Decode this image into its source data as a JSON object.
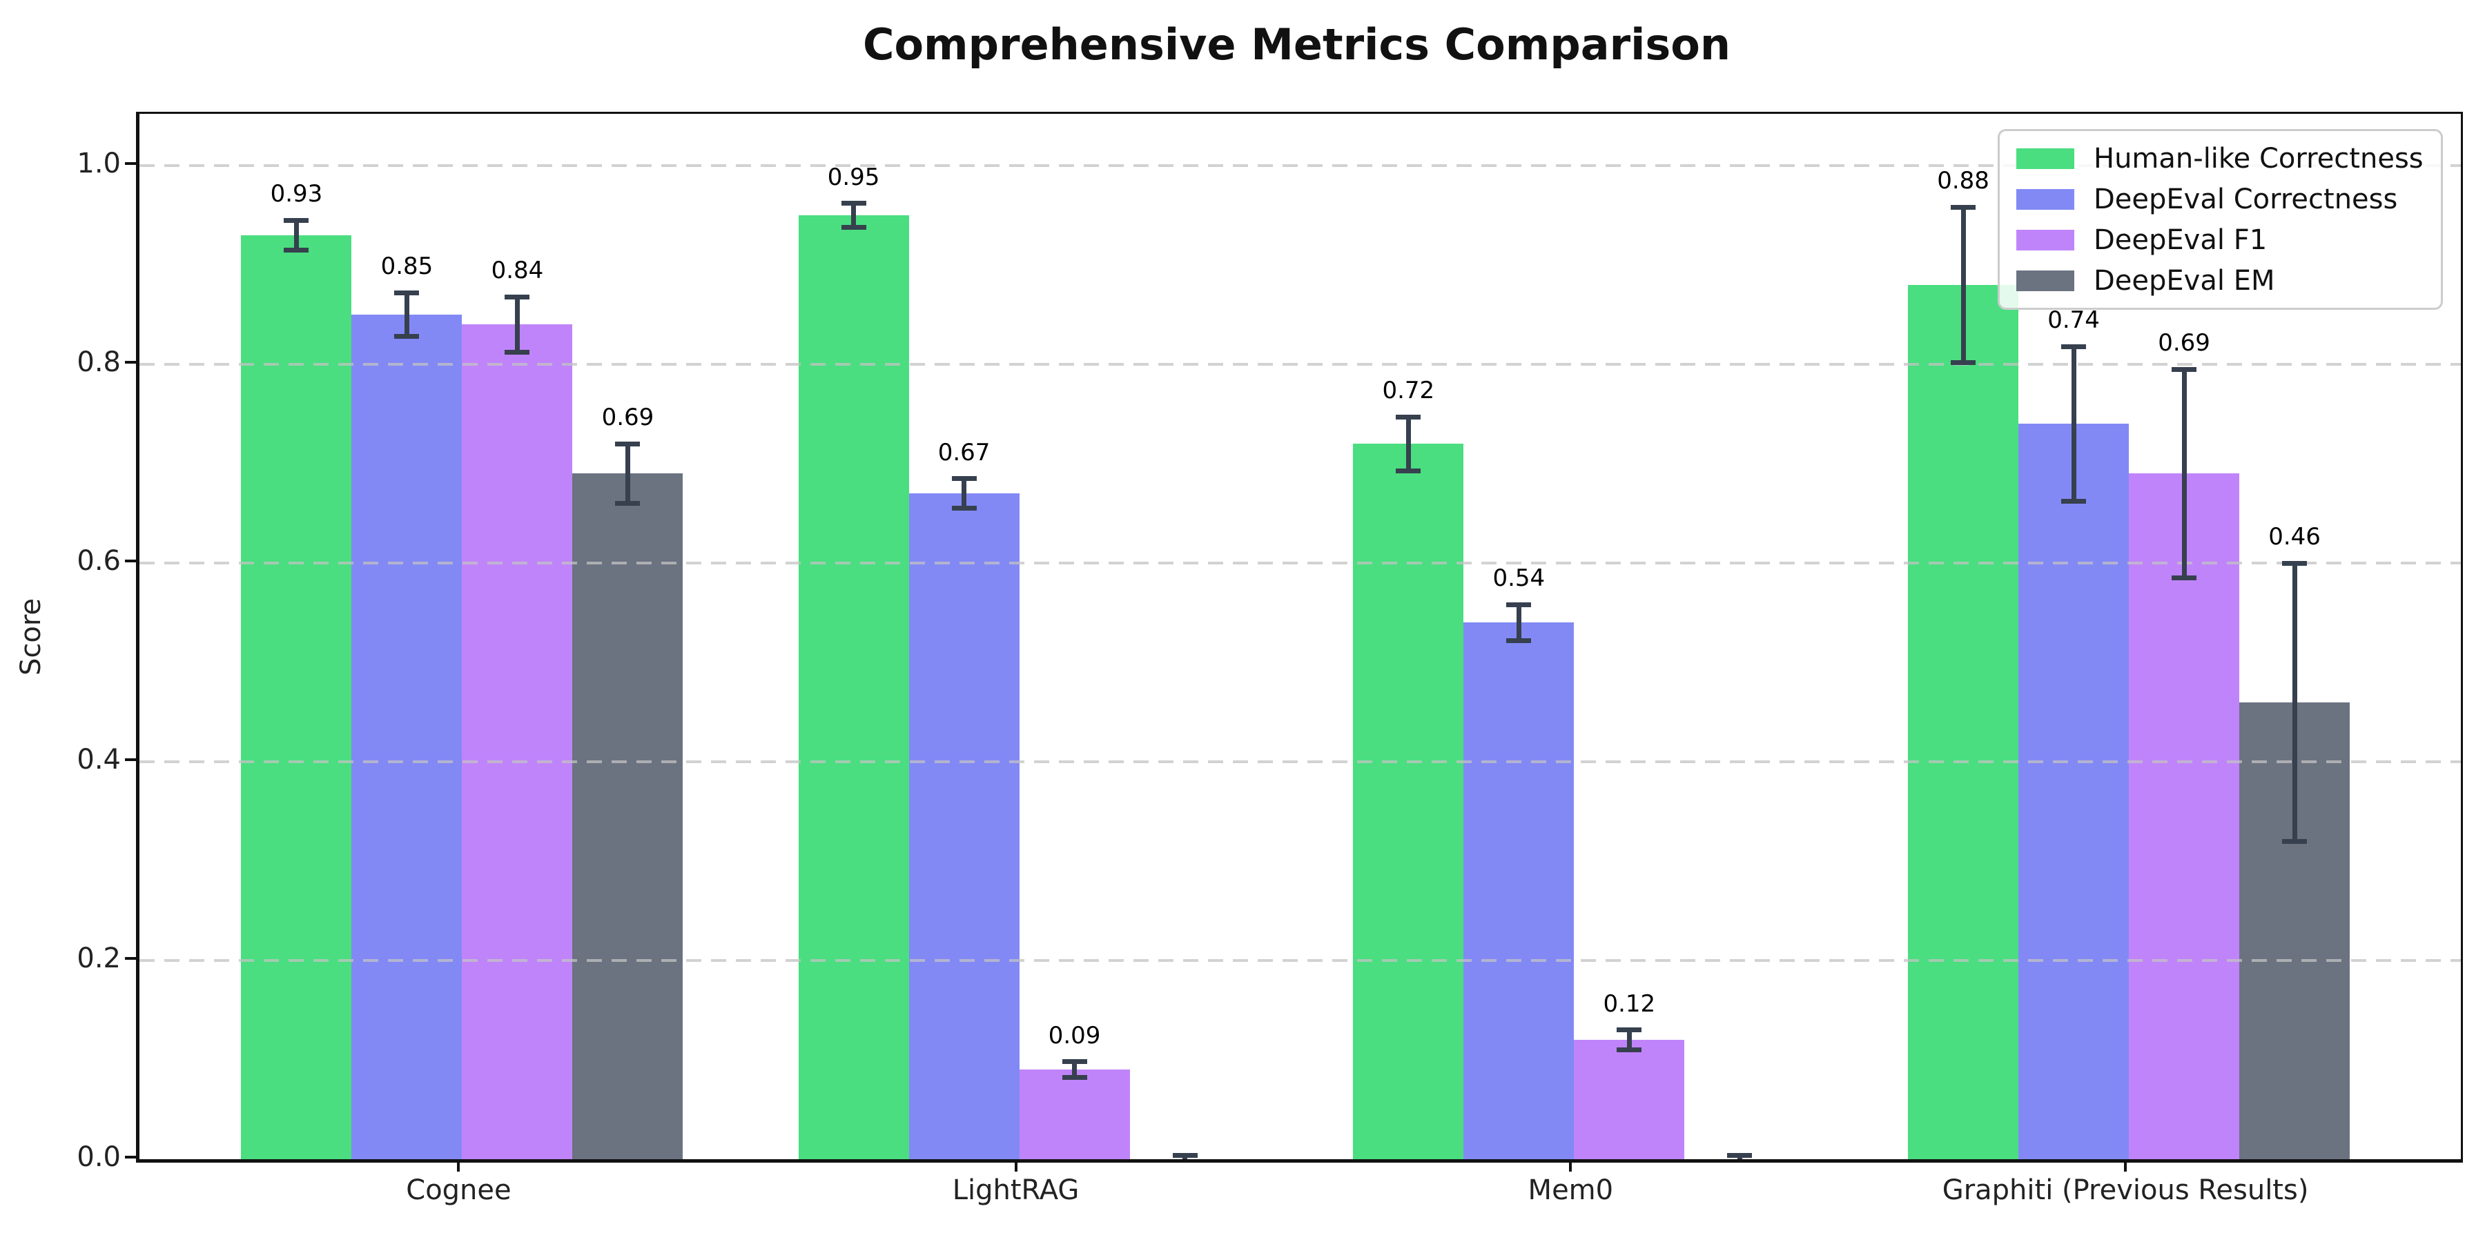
{
  "chart_data": {
    "type": "bar",
    "title": "Comprehensive Metrics Comparison",
    "xlabel": "",
    "ylabel": "Score",
    "ylim": [
      0,
      1.05
    ],
    "yticks": [
      0.0,
      0.2,
      0.4,
      0.6,
      0.8,
      1.0
    ],
    "ytick_labels": [
      "0.0",
      "0.2",
      "0.4",
      "0.6",
      "0.8",
      "1.0"
    ],
    "grid": "horizontal dashed gridlines at 0.2 intervals, drawn over bars",
    "legend_position": "upper right",
    "errorbar_color": "#36404e",
    "categories": [
      "Cognee",
      "LightRAG",
      "Mem0",
      "Graphiti (Previous Results)"
    ],
    "series": [
      {
        "name": "Human-like Correctness",
        "color": "#4ade80",
        "values": [
          0.93,
          0.95,
          0.72,
          0.88
        ],
        "errors": [
          0.015,
          0.012,
          0.027,
          0.078
        ],
        "labels": [
          "0.93",
          "0.95",
          "0.72",
          "0.88"
        ]
      },
      {
        "name": "DeepEval Correctness",
        "color": "#8289f5",
        "values": [
          0.85,
          0.67,
          0.54,
          0.74
        ],
        "errors": [
          0.022,
          0.015,
          0.018,
          0.078
        ],
        "labels": [
          "0.85",
          "0.67",
          "0.54",
          "0.74"
        ]
      },
      {
        "name": "DeepEval F1",
        "color": "#c084fa",
        "values": [
          0.84,
          0.09,
          0.12,
          0.69
        ],
        "errors": [
          0.028,
          0.008,
          0.01,
          0.105
        ],
        "labels": [
          "0.84",
          "0.09",
          "0.12",
          "0.69"
        ]
      },
      {
        "name": "DeepEval EM",
        "color": "#6b7280",
        "values": [
          0.69,
          0.0,
          0.0,
          0.46
        ],
        "errors": [
          0.03,
          0.004,
          0.004,
          0.14
        ],
        "labels": [
          "0.69",
          null,
          null,
          "0.46"
        ]
      }
    ]
  }
}
